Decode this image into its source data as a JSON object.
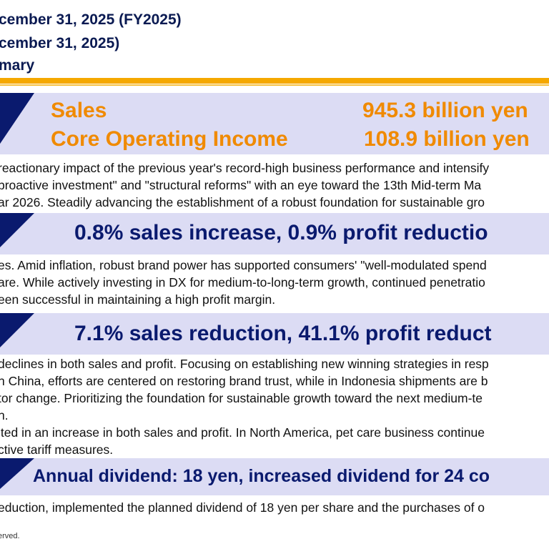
{
  "header": {
    "line1": "cember 31, 2025 (FY2025)",
    "line2": "cember 31, 2025)",
    "line3": "mary"
  },
  "consolidated": {
    "sales_label": "Sales",
    "sales_value": "945.3 billion yen",
    "core_label": "Core Operating Income",
    "core_value": "108.9 billion yen",
    "body": [
      "reactionary impact of the previous year's record-high business performance and intensify",
      "proactive investment\" and \"structural reforms\" with an eye toward the 13th Mid-term Ma",
      "ar 2026. Steadily advancing the establishment of a robust foundation for sustainable gro"
    ]
  },
  "japan": {
    "headline": "0.8% sales increase, 0.9% profit reductio",
    "body": [
      "es. Amid inflation, robust brand power has supported consumers' \"well-modulated spend",
      "are. While actively investing in DX for medium-to-long-term growth, continued penetratio",
      "een successful in maintaining a high profit margin."
    ]
  },
  "overseas": {
    "headline": "7.1% sales reduction, 41.1% profit reduct",
    "body": [
      "declines in both sales and profit. Focusing on establishing new winning strategies in resp",
      "n China, efforts are centered on restoring brand trust, while in Indonesia shipments are b",
      "tor change. Prioritizing the foundation for sustainable growth toward the next medium-te",
      "h.",
      "lted in an increase in both sales and profit. In North America, pet care business continue",
      "ctive tariff measures."
    ]
  },
  "dividend": {
    "headline": "Annual dividend: 18 yen, increased dividend for 24 co",
    "body": [
      "eduction, implemented the planned dividend of 18 yen per share and the purchases of o"
    ]
  },
  "footer": "erved.",
  "colors": {
    "band": "#dcdcf4",
    "navy": "#0a1a6e",
    "orange": "#f08a00",
    "accent_bar": "#f5a800"
  }
}
